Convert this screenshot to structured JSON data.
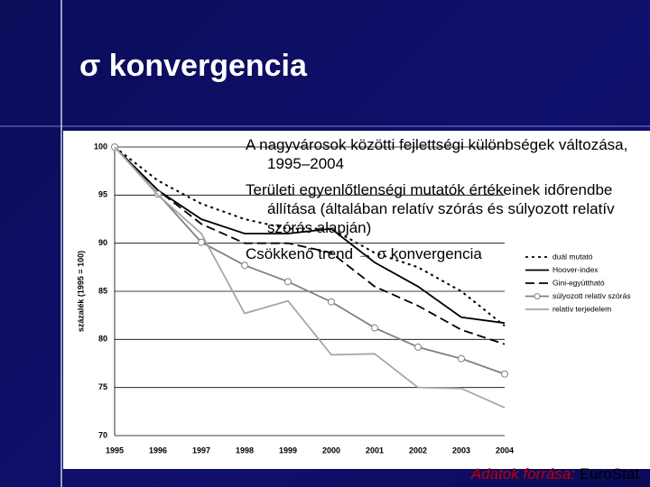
{
  "slide_title": "σ konvergencia",
  "bullets": [
    "A nagyvárosok közötti fejlettségi különbségek változása, 1995–2004",
    "Területi egyenlőtlenségi mutatók értékeinek időrendbe állítása (általában relatív szórás és súlyozott relatív szórás alapján)",
    "Csökkenő trend → σ konvergencia"
  ],
  "source": {
    "label": "Adatok forrása:",
    "name": "EuroStat"
  },
  "chart_data": {
    "type": "line",
    "y_label": "százalék (1995 = 100)",
    "categories": [
      "1995",
      "1996",
      "1997",
      "1998",
      "1999",
      "2000",
      "2001",
      "2002",
      "2003",
      "2004"
    ],
    "ylim": [
      70,
      100
    ],
    "yticks": [
      70,
      75,
      80,
      85,
      90,
      95,
      100
    ],
    "grid": true,
    "series": [
      {
        "name": "duál mutató",
        "color": "#000000",
        "dash": "dotted",
        "values": [
          100,
          96.5,
          94.1,
          92.5,
          91.5,
          91.5,
          89,
          87.5,
          85,
          81.4
        ]
      },
      {
        "name": "Hoover-index",
        "color": "#000000",
        "dash": "solid",
        "values": [
          100,
          95.5,
          92.5,
          91,
          91,
          91.5,
          88,
          85.5,
          82.3,
          81.7
        ]
      },
      {
        "name": "Gini-együttható",
        "color": "#000000",
        "dash": "dashed",
        "values": [
          100,
          95.5,
          92,
          90,
          90,
          89,
          85.5,
          83.5,
          81,
          79.5
        ]
      },
      {
        "name": "súlyozott relatív szórás",
        "color": "#808080",
        "dash": "solid",
        "marker": "circle",
        "values": [
          100,
          95.1,
          90.1,
          87.7,
          86,
          83.9,
          81.2,
          79.2,
          78,
          76.4
        ]
      },
      {
        "name": "relatív terjedelem",
        "color": "#a6a6a6",
        "dash": "solid",
        "values": [
          100,
          95,
          91,
          82.7,
          84,
          78.4,
          78.5,
          75,
          74.9,
          72.9
        ]
      }
    ]
  }
}
